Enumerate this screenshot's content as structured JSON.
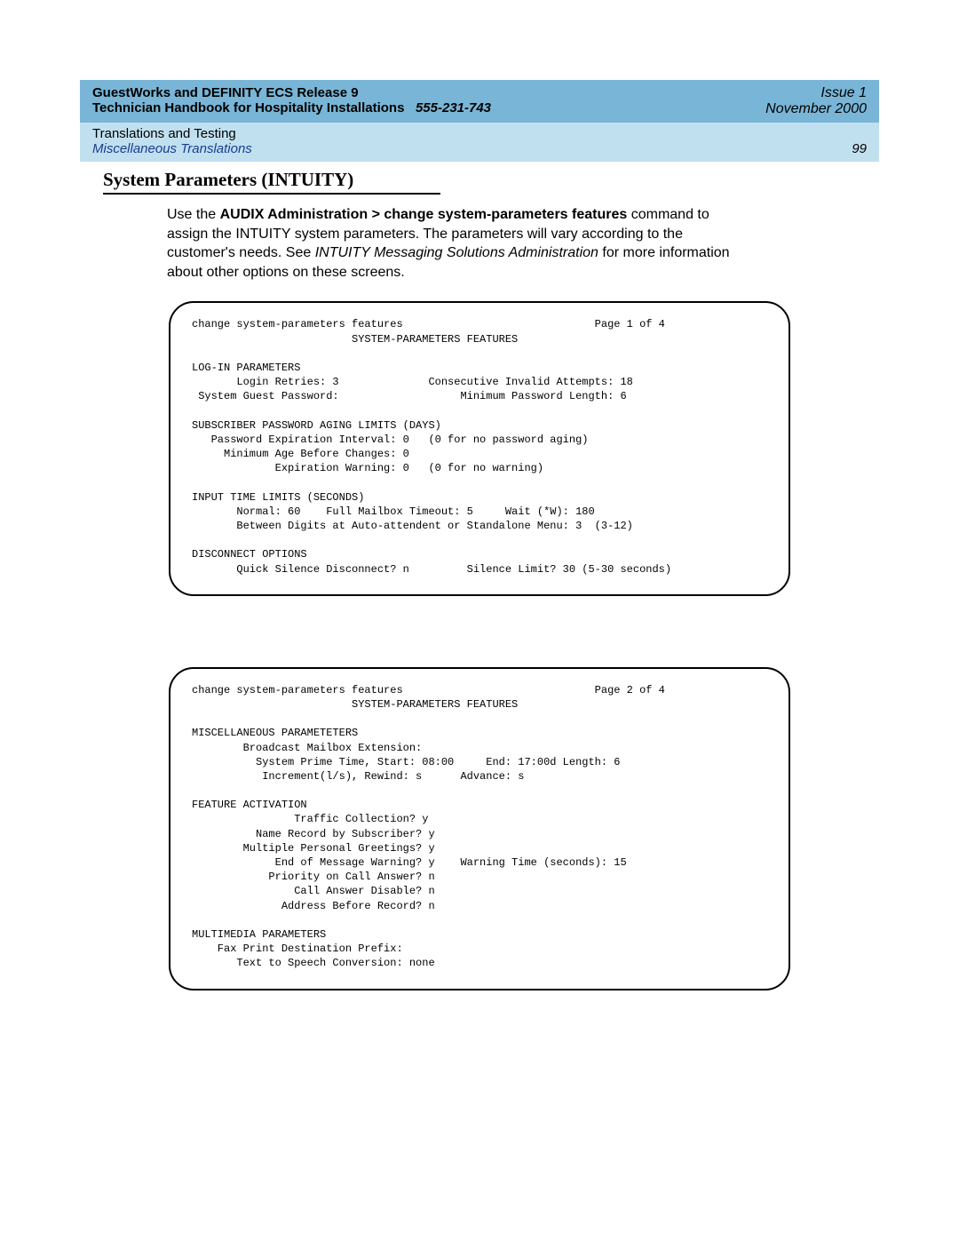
{
  "header": {
    "title_line1": "GuestWorks and DEFINITY ECS Release 9",
    "issue": "Issue 1",
    "title_line2_prefix": "Technician Handbook for Hospitality Installations",
    "doc_number": "555-231-743",
    "date": "November 2000",
    "chapter": "Translations and Testing",
    "section": "Miscellaneous Translations",
    "page_number": "99"
  },
  "section_heading": "System Parameters (INTUITY)",
  "body": {
    "prefix": "Use the ",
    "command_path": "AUDIX Administration > change system-parameters features",
    "mid": " command to assign the INTUITY system parameters. The parameters will vary according to the customer's needs. See ",
    "doc_ref": "INTUITY Messaging Solutions Administration",
    "suffix": " for more information about other options on these screens."
  },
  "terminal1": "change system-parameters features                              Page 1 of 4\n                         SYSTEM-PARAMETERS FEATURES\n\nLOG-IN PARAMETERS\n       Login Retries: 3              Consecutive Invalid Attempts: 18\n System Guest Password:                   Minimum Password Length: 6\n\nSUBSCRIBER PASSWORD AGING LIMITS (DAYS)\n   Password Expiration Interval: 0   (0 for no password aging)\n     Minimum Age Before Changes: 0\n             Expiration Warning: 0   (0 for no warning)\n\nINPUT TIME LIMITS (SECONDS)\n       Normal: 60    Full Mailbox Timeout: 5     Wait (*W): 180\n       Between Digits at Auto-attendent or Standalone Menu: 3  (3-12)\n\nDISCONNECT OPTIONS\n       Quick Silence Disconnect? n         Silence Limit? 30 (5-30 seconds)",
  "terminal2": "change system-parameters features                              Page 2 of 4\n                         SYSTEM-PARAMETERS FEATURES\n\nMISCELLANEOUS PARAMETETERS\n        Broadcast Mailbox Extension:\n          System Prime Time, Start: 08:00     End: 17:00d Length: 6\n           Increment(l/s), Rewind: s      Advance: s\n\nFEATURE ACTIVATION\n                Traffic Collection? y\n          Name Record by Subscriber? y\n        Multiple Personal Greetings? y\n             End of Message Warning? y    Warning Time (seconds): 15\n            Priority on Call Answer? n\n                Call Answer Disable? n\n              Address Before Record? n\n\nMULTIMEDIA PARAMETERS\n    Fax Print Destination Prefix:\n       Text to Speech Conversion: none"
}
